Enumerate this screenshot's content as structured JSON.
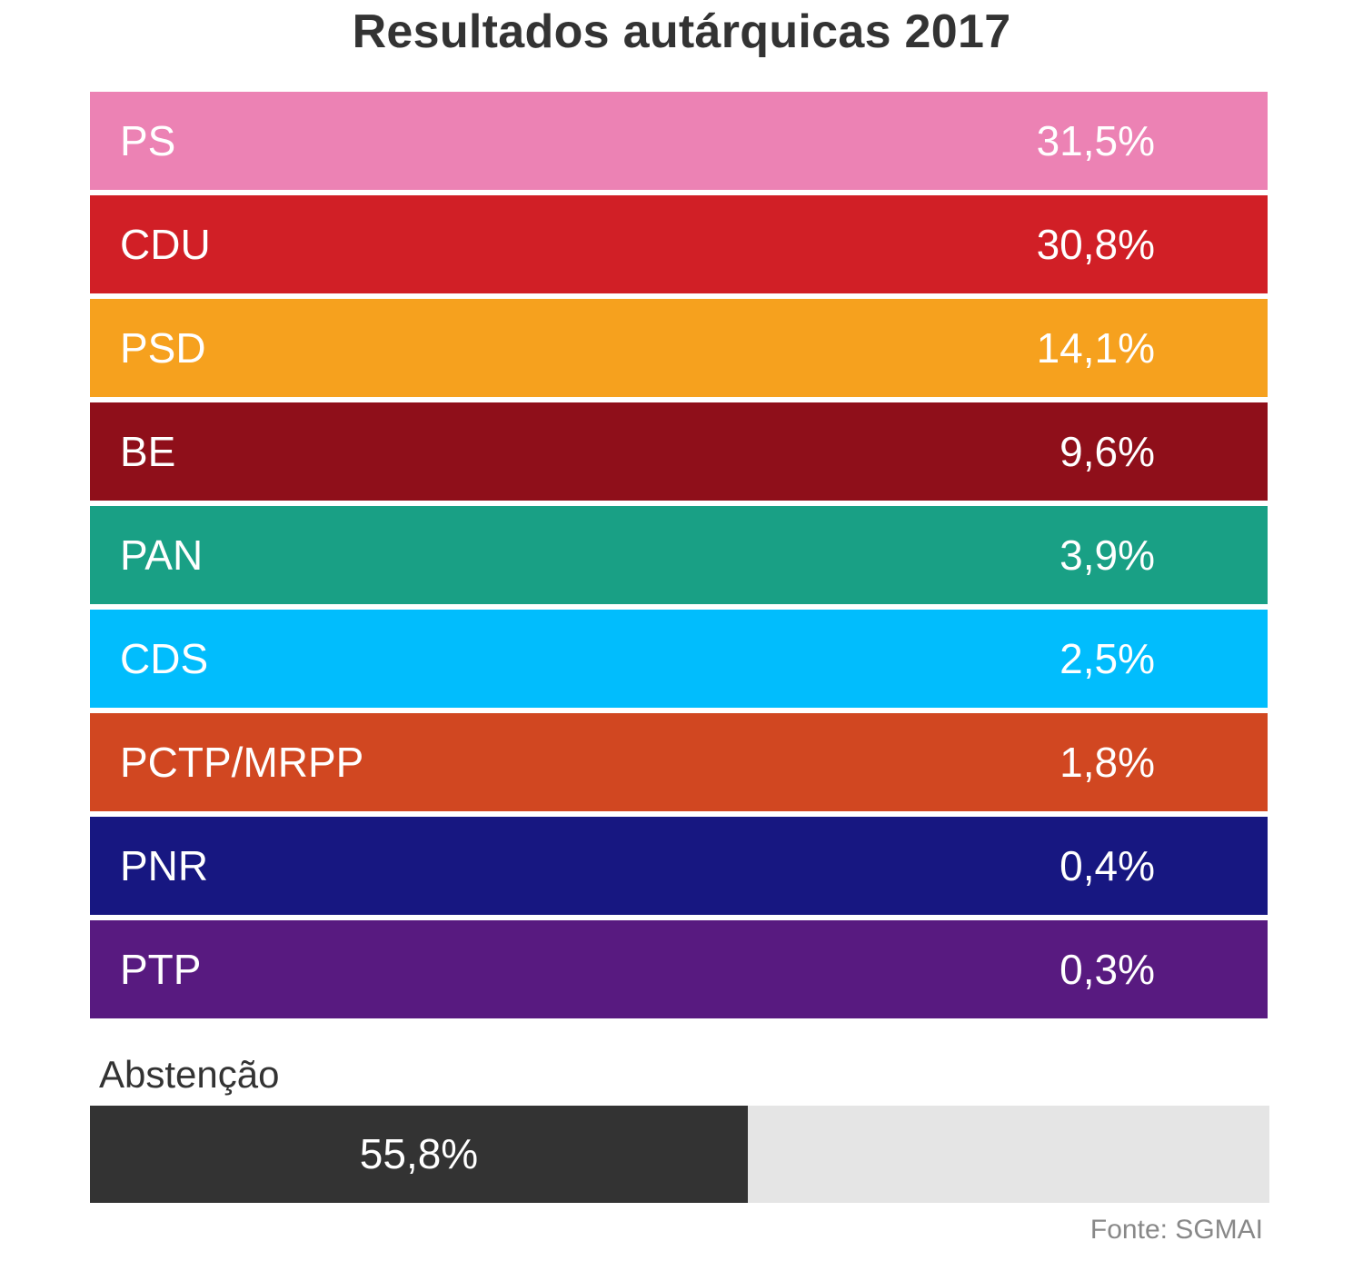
{
  "chart_data": {
    "type": "table",
    "title": "Resultados autárquicas 2017",
    "categories": [
      "PS",
      "CDU",
      "PSD",
      "BE",
      "PAN",
      "CDS",
      "PCTP/MRPP",
      "PNR",
      "PTP"
    ],
    "values": [
      31.5,
      30.8,
      14.1,
      9.6,
      3.9,
      2.5,
      1.8,
      0.4,
      0.3
    ],
    "value_labels": [
      "31,5%",
      "30,8%",
      "14,1%",
      "9,6%",
      "3,9%",
      "2,5%",
      "1,8%",
      "0,4%",
      "0,3%"
    ],
    "colors": [
      "#ec82b4",
      "#d11f26",
      "#f6a11e",
      "#8f0f1a",
      "#19a085",
      "#01bdfd",
      "#d14721",
      "#171781",
      "#581a80"
    ],
    "abstention": {
      "label": "Abstenção",
      "value": 55.8,
      "value_label": "55,8%",
      "fill_color": "#333333",
      "track_color": "#e5e5e5"
    },
    "source": "Fonte: SGMAI",
    "unit": "%"
  }
}
